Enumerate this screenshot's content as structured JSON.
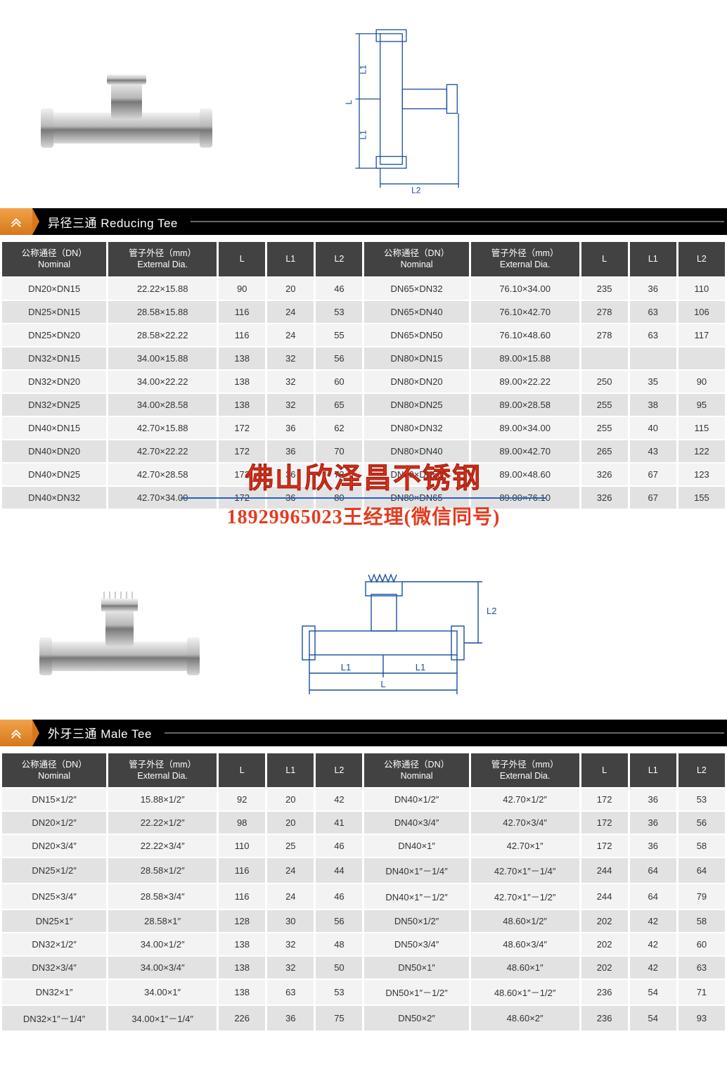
{
  "sections": [
    {
      "id": "reducing-tee",
      "title": "异径三通 Reducing Tee",
      "drawing": {
        "labels": [
          "L1",
          "L1",
          "L",
          "L2"
        ]
      },
      "table": {
        "columns": [
          {
            "h1": "公称通径（DN）",
            "h2": "Nominal",
            "cls": "col-nom"
          },
          {
            "h1": "管子外径（mm）",
            "h2": "External Dia.",
            "cls": "col-ext"
          },
          {
            "h1": "L",
            "h2": "",
            "cls": "col-l"
          },
          {
            "h1": "L1",
            "h2": "",
            "cls": "col-l1"
          },
          {
            "h1": "L2",
            "h2": "",
            "cls": "col-l2"
          },
          {
            "h1": "公称通径（DN）",
            "h2": "Nominal",
            "cls": "col-nom"
          },
          {
            "h1": "管子外径（mm）",
            "h2": "External Dia.",
            "cls": "col-ext"
          },
          {
            "h1": "L",
            "h2": "",
            "cls": "col-l"
          },
          {
            "h1": "L1",
            "h2": "",
            "cls": "col-l1"
          },
          {
            "h1": "L2",
            "h2": "",
            "cls": "col-l2"
          }
        ],
        "rows": [
          [
            "DN20×DN15",
            "22.22×15.88",
            "90",
            "20",
            "46",
            "DN65×DN32",
            "76.10×34.00",
            "235",
            "36",
            "110"
          ],
          [
            "DN25×DN15",
            "28.58×15.88",
            "116",
            "24",
            "53",
            "DN65×DN40",
            "76.10×42.70",
            "278",
            "63",
            "106"
          ],
          [
            "DN25×DN20",
            "28.58×22.22",
            "116",
            "24",
            "55",
            "DN65×DN50",
            "76.10×48.60",
            "278",
            "63",
            "117"
          ],
          [
            "DN32×DN15",
            "34.00×15.88",
            "138",
            "32",
            "56",
            "DN80×DN15",
            "89.00×15.88",
            "",
            "",
            ""
          ],
          [
            "DN32×DN20",
            "34.00×22.22",
            "138",
            "32",
            "60",
            "DN80×DN20",
            "89.00×22.22",
            "250",
            "35",
            "90"
          ],
          [
            "DN32×DN25",
            "34.00×28.58",
            "138",
            "32",
            "65",
            "DN80×DN25",
            "89.00×28.58",
            "255",
            "38",
            "95"
          ],
          [
            "DN40×DN15",
            "42.70×15.88",
            "172",
            "36",
            "62",
            "DN80×DN32",
            "89.00×34.00",
            "255",
            "40",
            "115"
          ],
          [
            "DN40×DN20",
            "42.70×22.22",
            "172",
            "36",
            "70",
            "DN80×DN40",
            "89.00×42.70",
            "265",
            "43",
            "122"
          ],
          [
            "DN40×DN25",
            "42.70×28.58",
            "172",
            "36",
            "73",
            "DN80×DN50",
            "89.00×48.60",
            "326",
            "67",
            "123"
          ],
          [
            "DN40×DN32",
            "42.70×34.00",
            "172",
            "36",
            "80",
            "DN80×DN65",
            "89.00×76.10",
            "326",
            "67",
            "155"
          ]
        ]
      }
    },
    {
      "id": "male-tee",
      "title": "外牙三通 Male Tee",
      "drawing": {
        "labels": [
          "L1",
          "L1",
          "L",
          "L2"
        ]
      },
      "table": {
        "columns": [
          {
            "h1": "公称通径（DN）",
            "h2": "Nominal",
            "cls": "col-nom"
          },
          {
            "h1": "管子外径（mm）",
            "h2": "External Dia.",
            "cls": "col-ext"
          },
          {
            "h1": "L",
            "h2": "",
            "cls": "col-l"
          },
          {
            "h1": "L1",
            "h2": "",
            "cls": "col-l1"
          },
          {
            "h1": "L2",
            "h2": "",
            "cls": "col-l2"
          },
          {
            "h1": "公称通径（DN）",
            "h2": "Nominal",
            "cls": "col-nom"
          },
          {
            "h1": "管子外径（mm）",
            "h2": "External Dia.",
            "cls": "col-ext"
          },
          {
            "h1": "L",
            "h2": "",
            "cls": "col-l"
          },
          {
            "h1": "L1",
            "h2": "",
            "cls": "col-l1"
          },
          {
            "h1": "L2",
            "h2": "",
            "cls": "col-l2"
          }
        ],
        "rows": [
          [
            "DN15×1/2″",
            "15.88×1/2″",
            "92",
            "20",
            "42",
            "DN40×1/2″",
            "42.70×1/2″",
            "172",
            "36",
            "53"
          ],
          [
            "DN20×1/2″",
            "22.22×1/2″",
            "98",
            "20",
            "41",
            "DN40×3/4″",
            "42.70×3/4″",
            "172",
            "36",
            "56"
          ],
          [
            "DN20×3/4″",
            "22.22×3/4″",
            "110",
            "25",
            "46",
            "DN40×1″",
            "42.70×1″",
            "172",
            "36",
            "58"
          ],
          [
            "DN25×1/2″",
            "28.58×1/2″",
            "116",
            "24",
            "44",
            "DN40×1″－1/4″",
            "42.70×1″－1/4″",
            "244",
            "64",
            "64"
          ],
          [
            "DN25×3/4″",
            "28.58×3/4″",
            "116",
            "24",
            "46",
            "DN40×1″－1/2″",
            "42.70×1″－1/2″",
            "244",
            "64",
            "79"
          ],
          [
            "DN25×1″",
            "28.58×1″",
            "128",
            "30",
            "56",
            "DN50×1/2″",
            "48.60×1/2″",
            "202",
            "42",
            "58"
          ],
          [
            "DN32×1/2″",
            "34.00×1/2″",
            "138",
            "32",
            "48",
            "DN50×3/4″",
            "48.60×3/4″",
            "202",
            "42",
            "60"
          ],
          [
            "DN32×3/4″",
            "34.00×3/4″",
            "138",
            "32",
            "50",
            "DN50×1″",
            "48.60×1″",
            "202",
            "42",
            "63"
          ],
          [
            "DN32×1″",
            "34.00×1″",
            "138",
            "63",
            "53",
            "DN50×1″－1/2″",
            "48.60×1″－1/2″",
            "236",
            "54",
            "71"
          ],
          [
            "DN32×1″－1/4″",
            "34.00×1″－1/4″",
            "226",
            "36",
            "75",
            "DN50×2″",
            "48.60×2″",
            "236",
            "54",
            "93"
          ]
        ]
      }
    }
  ],
  "watermark": {
    "line1": "佛山欣泽昌不锈钢",
    "phone": "18929965023",
    "contact": "王经理(微信同号)",
    "text_color": "#e53b1f",
    "underline_color": "#2b5fc8"
  },
  "styling": {
    "header_bg": "#000000",
    "chevron_gradient": [
      "#f2a24b",
      "#d67818"
    ],
    "th_bg": "#424242",
    "row_odd_bg": "#f3f3f3",
    "row_even_bg": "#e2e2e2",
    "font_family": "Arial, Microsoft YaHei",
    "header_fontsize": 17,
    "th_fontsize": 12.5,
    "td_fontsize": 13
  }
}
